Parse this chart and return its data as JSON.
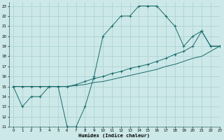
{
  "xlabel": "Humidex (Indice chaleur)",
  "xlim": [
    -0.5,
    23
  ],
  "ylim": [
    11,
    23.4
  ],
  "xticks": [
    0,
    1,
    2,
    3,
    4,
    5,
    6,
    7,
    8,
    9,
    10,
    11,
    12,
    13,
    14,
    15,
    16,
    17,
    18,
    19,
    20,
    21,
    22,
    23
  ],
  "yticks": [
    11,
    12,
    13,
    14,
    15,
    16,
    17,
    18,
    19,
    20,
    21,
    22,
    23
  ],
  "bg_color": "#cce8e8",
  "grid_color": "#aacfcf",
  "line_color": "#1a6b6b",
  "line1_x": [
    0,
    1,
    2,
    3,
    4,
    5,
    6,
    7,
    8,
    9,
    10,
    11,
    12,
    13,
    14,
    15,
    16,
    17,
    18,
    19,
    20,
    21,
    22,
    23
  ],
  "line1_y": [
    15,
    13,
    14,
    14,
    15,
    15,
    11,
    11,
    13,
    16,
    20,
    21,
    22,
    22,
    23,
    23,
    23,
    22,
    21,
    19,
    20,
    20.5,
    19,
    19
  ],
  "line2_x": [
    0,
    1,
    2,
    3,
    4,
    5,
    6,
    7,
    8,
    9,
    10,
    11,
    12,
    13,
    14,
    15,
    16,
    17,
    18,
    19,
    20,
    21,
    22,
    23
  ],
  "line2_y": [
    15,
    15,
    15,
    15,
    15,
    15,
    15,
    15.2,
    15.5,
    15.8,
    16,
    16.3,
    16.5,
    16.8,
    17,
    17.2,
    17.5,
    17.8,
    18.2,
    18.5,
    19,
    20.5,
    19,
    19
  ],
  "line3_x": [
    0,
    1,
    2,
    3,
    4,
    5,
    6,
    7,
    8,
    9,
    10,
    11,
    12,
    13,
    14,
    15,
    16,
    17,
    18,
    19,
    20,
    21,
    22,
    23
  ],
  "line3_y": [
    15,
    15,
    15,
    15,
    15,
    15,
    15,
    15.1,
    15.2,
    15.4,
    15.5,
    15.7,
    15.9,
    16.1,
    16.3,
    16.5,
    16.7,
    17.0,
    17.2,
    17.5,
    17.8,
    18.0,
    18.5,
    19
  ]
}
